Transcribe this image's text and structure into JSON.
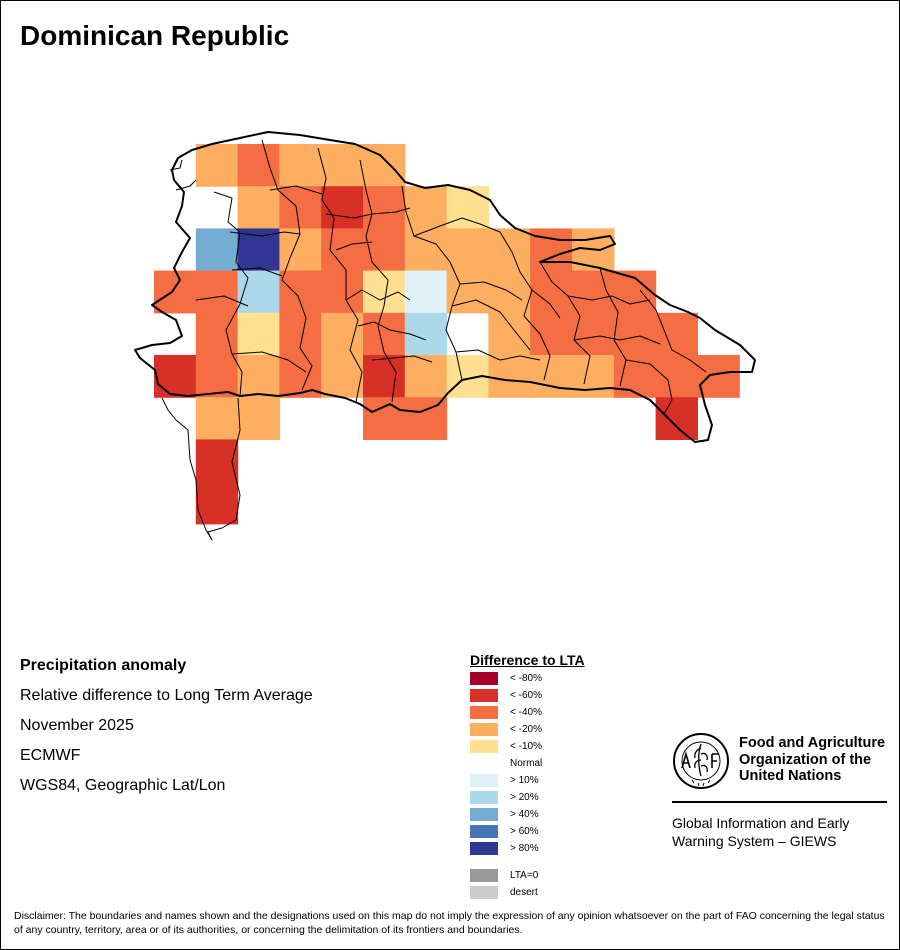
{
  "map_title": "Dominican Republic",
  "info": {
    "heading": "Precipitation anomaly",
    "subtitle": "Relative difference to Long Term Average",
    "period": "November 2025",
    "source": "ECMWF",
    "projection": "WGS84, Geographic Lat/Lon"
  },
  "legend": {
    "title": "Difference to LTA",
    "items": [
      {
        "label": "< -80%",
        "color": "#a50026"
      },
      {
        "label": "< -60%",
        "color": "#d73027"
      },
      {
        "label": "< -40%",
        "color": "#f46d43"
      },
      {
        "label": "< -20%",
        "color": "#fdae61"
      },
      {
        "label": "< -10%",
        "color": "#fee090"
      },
      {
        "label": "Normal",
        "color": "#ffffff"
      },
      {
        "label": "> 10%",
        "color": "#e0f3f8"
      },
      {
        "label": "> 20%",
        "color": "#abd9e9"
      },
      {
        "label": "> 40%",
        "color": "#74add1"
      },
      {
        "label": "> 60%",
        "color": "#4575b4"
      },
      {
        "label": "> 80%",
        "color": "#313695"
      },
      {
        "label": "LTA=0",
        "color": "#999999"
      },
      {
        "label": "desert",
        "color": "#cccccc"
      }
    ]
  },
  "grid_cells": [
    {
      "row": 0,
      "col": 1,
      "class": "< -20%"
    },
    {
      "row": 0,
      "col": 2,
      "class": "< -40%"
    },
    {
      "row": 0,
      "col": 3,
      "class": "< -20%"
    },
    {
      "row": 0,
      "col": 4,
      "class": "< -20%"
    },
    {
      "row": 0,
      "col": 5,
      "class": "< -20%"
    },
    {
      "row": 1,
      "col": 2,
      "class": "< -20%"
    },
    {
      "row": 1,
      "col": 3,
      "class": "< -40%"
    },
    {
      "row": 1,
      "col": 4,
      "class": "< -60%"
    },
    {
      "row": 1,
      "col": 5,
      "class": "< -40%"
    },
    {
      "row": 1,
      "col": 6,
      "class": "< -20%"
    },
    {
      "row": 1,
      "col": 7,
      "class": "< -10%"
    },
    {
      "row": 2,
      "col": 1,
      "class": "> 40%"
    },
    {
      "row": 2,
      "col": 2,
      "class": "> 80%"
    },
    {
      "row": 2,
      "col": 3,
      "class": "< -20%"
    },
    {
      "row": 2,
      "col": 4,
      "class": "< -40%"
    },
    {
      "row": 2,
      "col": 5,
      "class": "< -40%"
    },
    {
      "row": 2,
      "col": 6,
      "class": "< -20%"
    },
    {
      "row": 2,
      "col": 7,
      "class": "< -20%"
    },
    {
      "row": 2,
      "col": 8,
      "class": "< -20%"
    },
    {
      "row": 2,
      "col": 9,
      "class": "< -40%"
    },
    {
      "row": 2,
      "col": 10,
      "class": "< -20%"
    },
    {
      "row": 3,
      "col": 0,
      "class": "< -40%"
    },
    {
      "row": 3,
      "col": 1,
      "class": "< -40%"
    },
    {
      "row": 3,
      "col": 2,
      "class": "> 20%"
    },
    {
      "row": 3,
      "col": 3,
      "class": "< -40%"
    },
    {
      "row": 3,
      "col": 4,
      "class": "< -40%"
    },
    {
      "row": 3,
      "col": 5,
      "class": "< -10%"
    },
    {
      "row": 3,
      "col": 6,
      "class": "> 10%"
    },
    {
      "row": 3,
      "col": 7,
      "class": "< -20%"
    },
    {
      "row": 3,
      "col": 8,
      "class": "< -20%"
    },
    {
      "row": 3,
      "col": 9,
      "class": "< -40%"
    },
    {
      "row": 3,
      "col": 10,
      "class": "< -40%"
    },
    {
      "row": 3,
      "col": 11,
      "class": "< -40%"
    },
    {
      "row": 4,
      "col": 1,
      "class": "< -40%"
    },
    {
      "row": 4,
      "col": 2,
      "class": "< -10%"
    },
    {
      "row": 4,
      "col": 3,
      "class": "< -40%"
    },
    {
      "row": 4,
      "col": 4,
      "class": "< -20%"
    },
    {
      "row": 4,
      "col": 5,
      "class": "< -40%"
    },
    {
      "row": 4,
      "col": 6,
      "class": "> 20%"
    },
    {
      "row": 4,
      "col": 8,
      "class": "< -20%"
    },
    {
      "row": 4,
      "col": 9,
      "class": "< -40%"
    },
    {
      "row": 4,
      "col": 10,
      "class": "< -40%"
    },
    {
      "row": 4,
      "col": 11,
      "class": "< -40%"
    },
    {
      "row": 4,
      "col": 12,
      "class": "< -40%"
    },
    {
      "row": 5,
      "col": 0,
      "class": "< -60%"
    },
    {
      "row": 5,
      "col": 1,
      "class": "< -40%"
    },
    {
      "row": 5,
      "col": 2,
      "class": "< -20%"
    },
    {
      "row": 5,
      "col": 3,
      "class": "< -40%"
    },
    {
      "row": 5,
      "col": 4,
      "class": "< -20%"
    },
    {
      "row": 5,
      "col": 5,
      "class": "< -60%"
    },
    {
      "row": 5,
      "col": 6,
      "class": "< -20%"
    },
    {
      "row": 5,
      "col": 7,
      "class": "< -10%"
    },
    {
      "row": 5,
      "col": 8,
      "class": "< -20%"
    },
    {
      "row": 5,
      "col": 9,
      "class": "< -20%"
    },
    {
      "row": 5,
      "col": 10,
      "class": "< -20%"
    },
    {
      "row": 5,
      "col": 11,
      "class": "< -40%"
    },
    {
      "row": 5,
      "col": 12,
      "class": "< -40%"
    },
    {
      "row": 5,
      "col": 13,
      "class": "< -40%"
    },
    {
      "row": 6,
      "col": 1,
      "class": "< -20%"
    },
    {
      "row": 6,
      "col": 2,
      "class": "< -20%"
    },
    {
      "row": 6,
      "col": 5,
      "class": "< -40%"
    },
    {
      "row": 6,
      "col": 6,
      "class": "< -40%"
    },
    {
      "row": 6,
      "col": 12,
      "class": "< -60%"
    },
    {
      "row": 7,
      "col": 1,
      "class": "< -60%"
    },
    {
      "row": 8,
      "col": 1,
      "class": "< -60%"
    }
  ]
}
